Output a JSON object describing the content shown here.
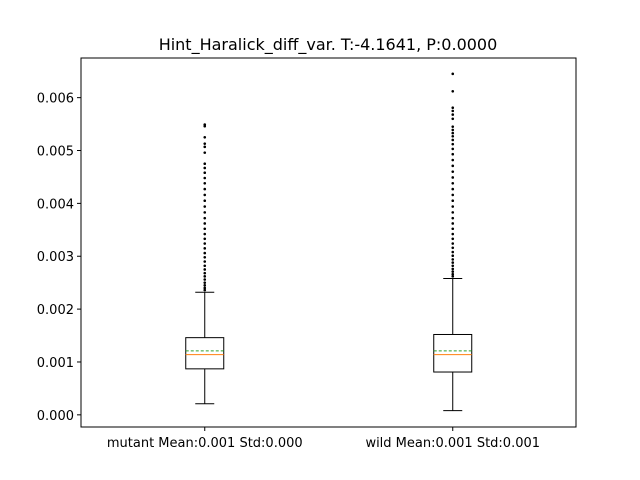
{
  "chart_data": {
    "type": "box",
    "title": "Hint_Haralick_diff_var. T:-4.1641, P:0.0000",
    "xlabel": "",
    "ylabel": "",
    "ylim": [
      -0.00023,
      0.00675
    ],
    "yticks": [
      0.0,
      0.001,
      0.002,
      0.003,
      0.004,
      0.005,
      0.006
    ],
    "ytick_labels": [
      "0.000",
      "0.001",
      "0.002",
      "0.003",
      "0.004",
      "0.005",
      "0.006"
    ],
    "categories": [
      "mutant Mean:0.001 Std:0.000",
      "wild Mean:0.001 Std:0.001"
    ],
    "boxes": [
      {
        "label": "mutant Mean:0.001 Std:0.000",
        "whisker_low": 0.00021,
        "q1": 0.00087,
        "median": 0.00114,
        "mean": 0.00121,
        "q3": 0.00146,
        "whisker_high": 0.00232,
        "fliers": [
          0.00236,
          0.0024,
          0.00245,
          0.0025,
          0.00256,
          0.00262,
          0.00268,
          0.00275,
          0.00282,
          0.0029,
          0.00298,
          0.00306,
          0.00315,
          0.00324,
          0.00333,
          0.00342,
          0.00352,
          0.00362,
          0.00372,
          0.00383,
          0.00394,
          0.00405,
          0.00416,
          0.00427,
          0.00438,
          0.00448,
          0.00458,
          0.00467,
          0.00475,
          0.00496,
          0.00507,
          0.00513,
          0.00525,
          0.00546,
          0.00549
        ]
      },
      {
        "label": "wild Mean:0.001 Std:0.001",
        "whisker_low": 8e-05,
        "q1": 0.00081,
        "median": 0.00114,
        "mean": 0.00121,
        "q3": 0.00152,
        "whisker_high": 0.00258,
        "fliers": [
          0.00262,
          0.00266,
          0.00271,
          0.00276,
          0.00282,
          0.00288,
          0.00294,
          0.00301,
          0.00308,
          0.00316,
          0.00324,
          0.00333,
          0.00342,
          0.00352,
          0.00362,
          0.00372,
          0.00383,
          0.00394,
          0.00405,
          0.00416,
          0.00427,
          0.00438,
          0.00449,
          0.0046,
          0.00471,
          0.00482,
          0.00493,
          0.00503,
          0.00512,
          0.0052,
          0.00527,
          0.00533,
          0.00539,
          0.00545,
          0.0056,
          0.00568,
          0.00575,
          0.00581,
          0.00612,
          0.00645
        ]
      }
    ],
    "colors": {
      "box": "#000000",
      "median": "#ff7f0e",
      "mean": "#2ca02c",
      "flier": "#000000"
    },
    "grid": false,
    "legend": "none"
  }
}
